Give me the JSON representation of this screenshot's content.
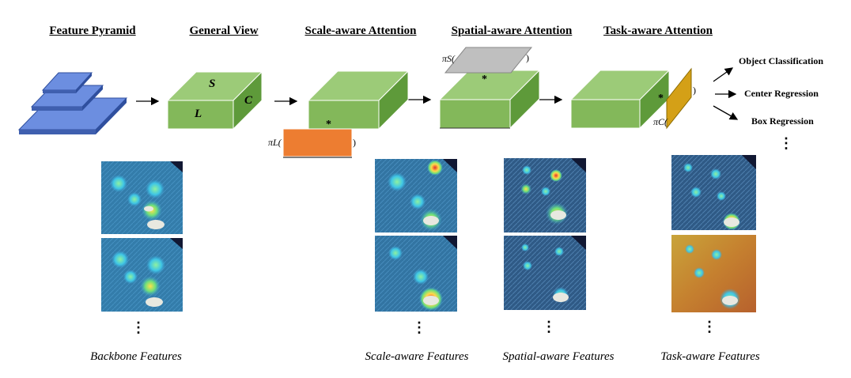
{
  "headings": {
    "feature_pyramid": "Feature Pyramid",
    "general_view": "General View",
    "scale_attention": "Scale-aware Attention",
    "spatial_attention": "Spatial-aware Attention",
    "task_attention": "Task-aware Attention"
  },
  "cube_labels": {
    "s": "S",
    "l": "L",
    "c": "C"
  },
  "pi_labels": {
    "pi_s": "πS(",
    "pi_l": "πL(",
    "pi_c": "πC(",
    "close": ")",
    "star": "*"
  },
  "outputs": {
    "object_classification": "Object Classification",
    "center_regression": "Center Regression",
    "box_regression": "Box Regression"
  },
  "ellipsis": "⋮",
  "captions": {
    "backbone": "Backbone Features",
    "scale": "Scale-aware Features",
    "spatial": "Spatial-aware Features",
    "task": "Task-aware Features"
  },
  "colors": {
    "pyramid_blue": "#6C8EE0",
    "cube_front": "#83B85A",
    "cube_top": "#9CCB78",
    "cube_side": "#5E9A3A",
    "scale_orange": "#ED7D31",
    "spatial_gray": "#BFBFBF",
    "task_gold": "#D4A017"
  }
}
